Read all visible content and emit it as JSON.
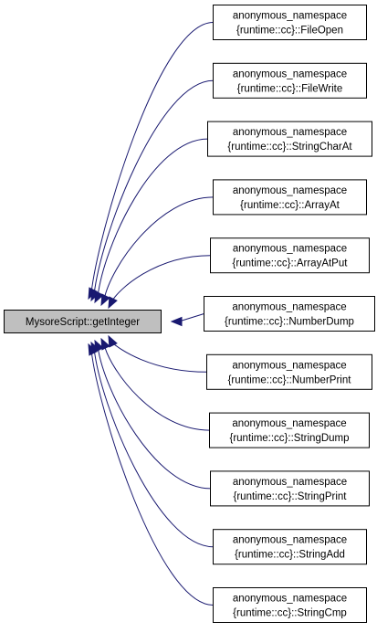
{
  "graph": {
    "root": {
      "label": "MysoreScript::getInteger"
    },
    "callers": [
      {
        "namespace": "anonymous_namespace",
        "name": "{runtime::cc}::FileOpen"
      },
      {
        "namespace": "anonymous_namespace",
        "name": "{runtime::cc}::FileWrite"
      },
      {
        "namespace": "anonymous_namespace",
        "name": "{runtime::cc}::StringCharAt"
      },
      {
        "namespace": "anonymous_namespace",
        "name": "{runtime::cc}::ArrayAt"
      },
      {
        "namespace": "anonymous_namespace",
        "name": "{runtime::cc}::ArrayAtPut"
      },
      {
        "namespace": "anonymous_namespace",
        "name": "{runtime::cc}::NumberDump"
      },
      {
        "namespace": "anonymous_namespace",
        "name": "{runtime::cc}::NumberPrint"
      },
      {
        "namespace": "anonymous_namespace",
        "name": "{runtime::cc}::StringDump"
      },
      {
        "namespace": "anonymous_namespace",
        "name": "{runtime::cc}::StringPrint"
      },
      {
        "namespace": "anonymous_namespace",
        "name": "{runtime::cc}::StringAdd"
      },
      {
        "namespace": "anonymous_namespace",
        "name": "{runtime::cc}::StringCmp"
      }
    ],
    "colors": {
      "edge": "#191970",
      "root_fill": "#bfbfbf",
      "node_fill": "#ffffff",
      "border": "#000000"
    }
  }
}
